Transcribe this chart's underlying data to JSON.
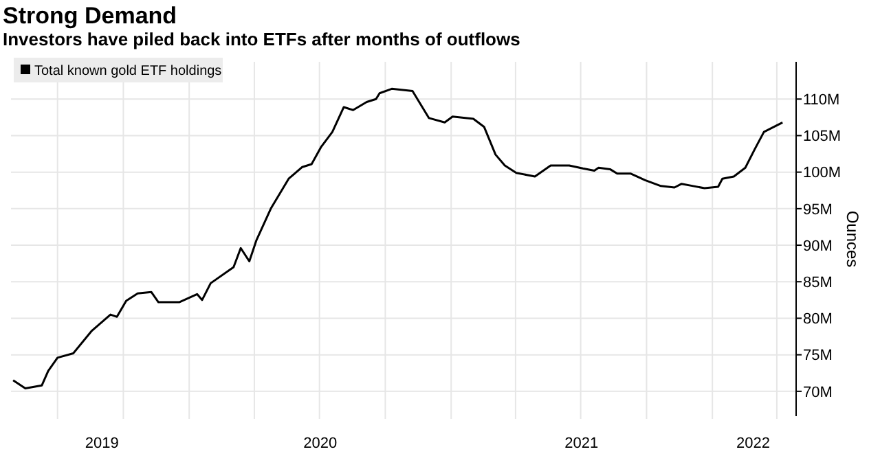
{
  "chart_data": {
    "type": "line",
    "title": "Strong Demand",
    "subtitle": "Investors have piled back into ETFs after months of outflows",
    "ylabel": "Ounces",
    "xlim": [
      "2019-04-27",
      "2022-04-28"
    ],
    "ylim": [
      66.6,
      115.1
    ],
    "xticks": [
      {
        "value": "2019-07-01",
        "label": null
      },
      {
        "value": "2019-10-01",
        "label": null
      },
      {
        "value": "2020-01-01",
        "label": null
      },
      {
        "value": "2020-04-01",
        "label": null
      },
      {
        "value": "2020-07-01",
        "label": null
      },
      {
        "value": "2020-10-01",
        "label": null
      },
      {
        "value": "2021-01-01",
        "label": null
      },
      {
        "value": "2021-04-01",
        "label": null
      },
      {
        "value": "2021-07-01",
        "label": null
      },
      {
        "value": "2021-10-01",
        "label": null
      },
      {
        "value": "2022-01-01",
        "label": null
      },
      {
        "value": "2022-04-01",
        "label": null
      },
      {
        "value": "2019-09-01",
        "label": "2019"
      },
      {
        "value": "2020-07-02",
        "label": "2020"
      },
      {
        "value": "2021-07-02",
        "label": "2021"
      },
      {
        "value": "2022-02-27",
        "label": "2022"
      }
    ],
    "yticks": [
      {
        "value": 70,
        "label": "70M"
      },
      {
        "value": 75,
        "label": "75M"
      },
      {
        "value": 80,
        "label": "80M"
      },
      {
        "value": 85,
        "label": "85M"
      },
      {
        "value": 90,
        "label": "90M"
      },
      {
        "value": 95,
        "label": "95M"
      },
      {
        "value": 100,
        "label": "100M"
      },
      {
        "value": 105,
        "label": "105M"
      },
      {
        "value": 110,
        "label": "110M"
      }
    ],
    "grid": true,
    "legend": "top left",
    "x": [
      "2019-04-30",
      "2019-05-17",
      "2019-06-09",
      "2019-06-18",
      "2019-07-01",
      "2019-07-23",
      "2019-08-18",
      "2019-09-13",
      "2019-09-22",
      "2019-10-05",
      "2019-10-21",
      "2019-11-09",
      "2019-11-19",
      "2019-12-18",
      "2020-01-12",
      "2020-01-19",
      "2020-01-31",
      "2020-03-03",
      "2020-03-13",
      "2020-03-25",
      "2020-04-04",
      "2020-04-24",
      "2020-05-19",
      "2020-06-07",
      "2020-06-20",
      "2020-07-03",
      "2020-07-19",
      "2020-08-04",
      "2020-08-17",
      "2020-09-05",
      "2020-09-18",
      "2020-09-23",
      "2020-10-10",
      "2020-11-08",
      "2020-12-01",
      "2020-12-23",
      "2021-01-03",
      "2021-02-01",
      "2021-02-16",
      "2021-03-04",
      "2021-03-17",
      "2021-04-02",
      "2021-04-28",
      "2021-05-20",
      "2021-06-15",
      "2021-07-04",
      "2021-07-20",
      "2021-07-26",
      "2021-08-11",
      "2021-08-21",
      "2021-09-09",
      "2021-09-29",
      "2021-10-21",
      "2021-11-09",
      "2021-11-19",
      "2021-12-05",
      "2021-12-21",
      "2022-01-09",
      "2022-01-15",
      "2022-01-31",
      "2022-02-16",
      "2022-03-01",
      "2022-03-14",
      "2022-03-30",
      "2022-04-09"
    ],
    "series": [
      {
        "name": "Total known gold ETF holdings",
        "color": "#000000",
        "values": [
          71.5,
          70.4,
          70.8,
          72.8,
          74.6,
          75.2,
          78.3,
          80.5,
          80.2,
          82.4,
          83.4,
          83.6,
          82.2,
          82.2,
          83.3,
          82.5,
          84.8,
          87.0,
          89.6,
          87.8,
          90.7,
          95.0,
          99.1,
          100.7,
          101.1,
          103.4,
          105.5,
          108.9,
          108.5,
          109.6,
          110.0,
          110.8,
          111.4,
          111.1,
          107.4,
          106.8,
          107.6,
          107.3,
          106.2,
          102.4,
          100.9,
          99.9,
          99.4,
          100.9,
          100.9,
          100.5,
          100.2,
          100.6,
          100.4,
          99.8,
          99.8,
          98.9,
          98.1,
          97.9,
          98.4,
          98.1,
          97.8,
          98.0,
          99.1,
          99.4,
          100.6,
          103.1,
          105.5,
          106.3,
          106.8
        ]
      }
    ]
  }
}
